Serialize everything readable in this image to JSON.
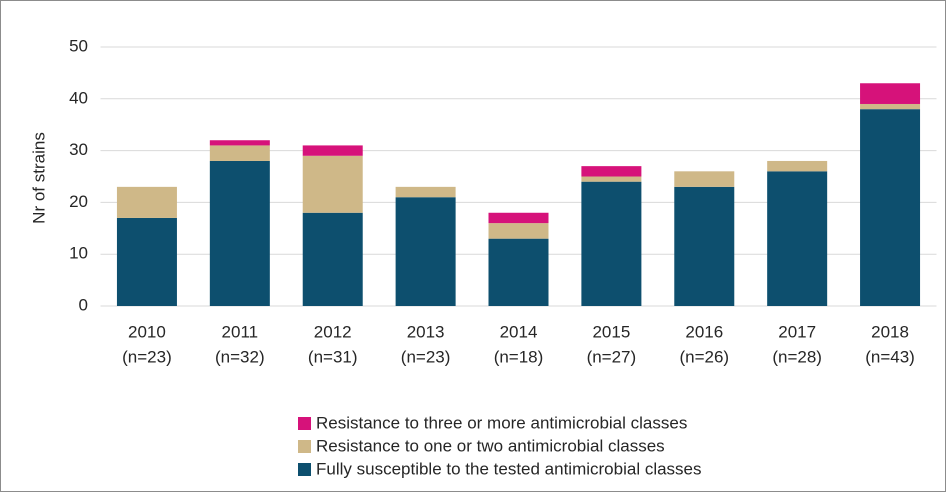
{
  "chart_data": {
    "type": "stacked_bar",
    "ylabel": "Nr of strains",
    "categories": [
      [
        "2010",
        "(n=23)"
      ],
      [
        "2011",
        "(n=32)"
      ],
      [
        "2012",
        "(n=31)"
      ],
      [
        "2013",
        "(n=23)"
      ],
      [
        "2014",
        "(n=18)"
      ],
      [
        "2015",
        "(n=27)"
      ],
      [
        "2016",
        "(n=26)"
      ],
      [
        "2017",
        "(n=28)"
      ],
      [
        "2018",
        "(n=43)"
      ]
    ],
    "series": [
      {
        "name": "Fully susceptible to the tested antimicrobial classes",
        "color": "#0d4f6e",
        "values": [
          17,
          28,
          18,
          21,
          13,
          24,
          23,
          26,
          38
        ]
      },
      {
        "name": "Resistance to one or two antimicrobial classes",
        "color": "#cfb888",
        "values": [
          6,
          3,
          11,
          2,
          3,
          1,
          3,
          2,
          1
        ]
      },
      {
        "name": "Resistance to three or more antimicrobial classes",
        "color": "#d6127a",
        "values": [
          0,
          1,
          2,
          0,
          2,
          2,
          0,
          0,
          4
        ]
      }
    ],
    "ylim": [
      0,
      50
    ],
    "yticks": [
      0,
      10,
      20,
      30,
      40,
      50
    ],
    "grid": true,
    "legend": "bottom"
  }
}
